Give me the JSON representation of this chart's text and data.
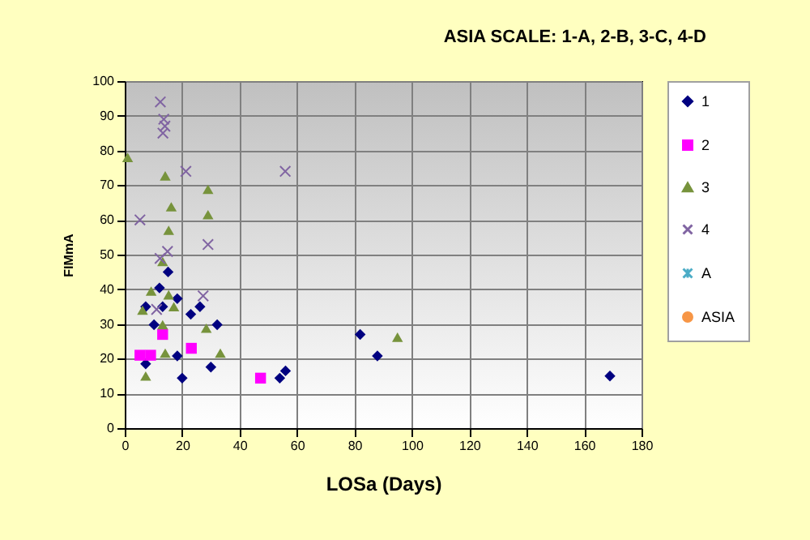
{
  "chart_data": {
    "type": "scatter",
    "title": "ASIA SCALE: 1-A, 2-B, 3-C, 4-D",
    "xlabel": "LOSa  (Days)",
    "ylabel": "FIMmA",
    "xlim": [
      0,
      180
    ],
    "xticks": [
      0,
      20,
      40,
      60,
      80,
      100,
      120,
      140,
      160,
      180
    ],
    "ylim": [
      0,
      100
    ],
    "yticks": [
      0,
      10,
      20,
      30,
      40,
      50,
      60,
      70,
      80,
      90,
      100
    ],
    "grid": true,
    "legend": "right",
    "series": [
      {
        "name": "1",
        "color": "#000080",
        "marker": "diamond",
        "x": [
          7.3,
          7.3,
          10.2,
          12.1,
          13.2,
          15.1,
          18.3,
          18.3,
          20,
          23,
          26.2,
          30,
          32.2,
          54,
          56,
          82,
          88,
          169
        ],
        "values": [
          18.5,
          35,
          29.8,
          40.4,
          35,
          45,
          37.3,
          20.8,
          14.4,
          32.8,
          35,
          17.6,
          29.8,
          14.4,
          16.5,
          27,
          20.8,
          15
        ]
      },
      {
        "name": "2",
        "color": "#ff00ff",
        "marker": "square",
        "x": [
          5.3,
          9,
          13.2,
          23.2,
          47.3
        ],
        "values": [
          21,
          21,
          27,
          23,
          14.4
        ]
      },
      {
        "name": "3",
        "color": "#77933c",
        "marker": "triangle",
        "x": [
          1,
          14.1,
          29,
          16.2,
          29,
          15.3,
          13.2,
          9.2,
          15.3,
          6.2,
          17.1,
          13.2,
          28.4,
          14.1,
          33.3,
          7.3,
          95
        ],
        "values": [
          78,
          72.7,
          68.8,
          63.8,
          61.5,
          57,
          48,
          39.5,
          38.4,
          34,
          35,
          29.8,
          28.8,
          21.6,
          21.6,
          15,
          26.2
        ]
      },
      {
        "name": "4",
        "color": "#8064a2",
        "marker": "cross",
        "x": [
          21.3,
          55.9,
          5.3,
          29,
          14.9,
          12.3,
          27.3,
          11.1,
          12.4,
          13.6,
          14,
          13.3
        ],
        "values": [
          74,
          74,
          60,
          52.9,
          50.9,
          48.9,
          38.1,
          34.2,
          94,
          89,
          87,
          85
        ]
      },
      {
        "name": "A",
        "color": "#4bacc6",
        "marker": "star"
      },
      {
        "name": "ASIA",
        "color": "#f79646",
        "marker": "circle"
      }
    ]
  }
}
